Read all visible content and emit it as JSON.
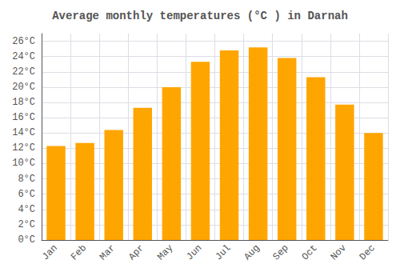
{
  "chart_data": {
    "type": "bar",
    "title": "Average monthly temperatures (°C ) in Darnah",
    "categories": [
      "Jan",
      "Feb",
      "Mar",
      "Apr",
      "May",
      "Jun",
      "Jul",
      "Aug",
      "Sep",
      "Oct",
      "Nov",
      "Dec"
    ],
    "values": [
      12.3,
      12.7,
      14.4,
      17.3,
      20.0,
      23.3,
      24.8,
      25.2,
      23.8,
      21.3,
      17.7,
      14.0
    ],
    "color": "#FFA500",
    "ylim": [
      0,
      27
    ],
    "yticks": [
      {
        "value": 0,
        "label": "0°C"
      },
      {
        "value": 2,
        "label": "2°C"
      },
      {
        "value": 4,
        "label": "4°C"
      },
      {
        "value": 6,
        "label": "6°C"
      },
      {
        "value": 8,
        "label": "8°C"
      },
      {
        "value": 10,
        "label": "10°C"
      },
      {
        "value": 12,
        "label": "12°C"
      },
      {
        "value": 14,
        "label": "14°C"
      },
      {
        "value": 16,
        "label": "16°C"
      },
      {
        "value": 18,
        "label": "18°C"
      },
      {
        "value": 20,
        "label": "20°C"
      },
      {
        "value": 22,
        "label": "22°C"
      },
      {
        "value": 24,
        "label": "24°C"
      },
      {
        "value": 26,
        "label": "26°C"
      }
    ],
    "grid": true
  }
}
